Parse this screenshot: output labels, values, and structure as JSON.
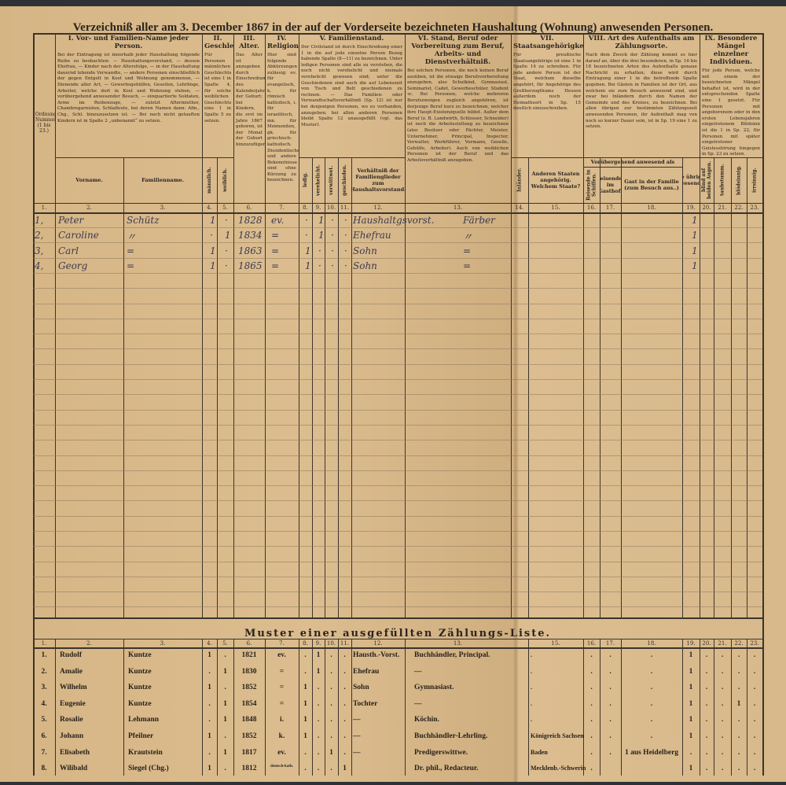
{
  "title": "Verzeichniß aller am 3. December 1867 in der auf der Vorderseite bezeichneten Haushaltung (Wohnung) anwesenden Personen.",
  "colors": {
    "paper": "#d8b98b",
    "ink": "#2c261f",
    "handwriting": "#3a3a52"
  },
  "header": {
    "ordnungsnummer": "Ordnungs-Nummer (1 bis 23.)",
    "sections": [
      {
        "id": "I",
        "title": "I. Vor- und Familien-Name jeder Person.",
        "body": "Bei der Eintragung ist innerhalb jeder Haushaltung folgende Reihe zu beobachten: — Haushaltungsvorstand, — dessen Ehefrau, — Kinder nach der Altersfolge, — in der Haushaltung dauernd lebende Verwandte, — andere Personen einschließlich der gegen Entgelt in Kost und Wohnung genommenen, — Dienende aller Art, — Gewerbsgehülfen, Gesellen, Lehrlinge, Arbeiter, welche dort in Kost und Wohnung stehen, — vorübergehend anwesender Besuch, — einquartierte Soldaten, Arme im Reihenzuge, — zuletzt Aftermiether, Chambregarnisten, Schlafleute, bei deren Namen dann: Afm., Chg., Schl. hinzuzusetzen ist. — Bei noch nicht getauften Kindern ist in Spalte 2 „unbenannt“ zu setzen."
      },
      {
        "id": "II",
        "title": "II. Geschlecht.",
        "body": "Für Personen männlichen Geschlechts ist eine 1 in Spalte 4, für solche weiblichen Geschlechts eine 1 in Spalte 5 zu setzen."
      },
      {
        "id": "III",
        "title": "III. Alter.",
        "body": "Das Alter ist anzugeben durch Einschreibung des Kalenderjahres der Geburt; bei Kindern, die erst im Jahre 1867 geboren, ist der Monat der Geburt hinzuzufügen."
      },
      {
        "id": "IV",
        "title": "IV. Religionsbekenntniß.",
        "body": "Hier sind folgende Abkürzungen zulässig: ev. für evangelisch, k. für römisch katholisch, i. für israelitisch, mn. für Mennoniten, gk. für griechisch-katholisch. Dissidentische und andere Bekenntnisse sind ohne Kürzung zu bezeichnen."
      },
      {
        "id": "V",
        "title": "V. Familienstand.",
        "body": "Der Civilstand ist durch Einschreibung einer 1 in die auf jede einzelne Person Bezug habende Spalte (8—11) zu bezeichnen. Unter ledigen Personen sind alle zu verstehen, die noch nicht verehelicht und niemals verehelicht gewesen sind; unter die Geschiedenen sind auch die auf Lebenszeit von Tisch und Bett geschiedenen zu rechnen. — Das Familien- oder Verwandtschaftsverhältniß (Sp. 12) ist nur bei denjenigen Personen, wo es vorhanden, anzugeben; bei allen anderen Personen bleibt Spalte 12 unausgefüllt (vgl. das Muster)."
      },
      {
        "id": "VI",
        "title": "VI. Stand, Beruf oder Vorbereitung zum Beruf, Arbeits- und Dienstverhältniß.",
        "body": "Bei solchen Personen, die noch keinen Beruf ausüben, ist die etwaige Berufsvorbereitung anzugeben, also Schulkind, Gymnasiast, Seminarist, Cadet, Gewerbeschüler, Student ꝛc. Bei Personen, welche mehreren Berufszweigen zugleich angehören, ist derjenige Beruf kurz zu bezeichnen, welcher ihre Haupt-Existenzquelle bildet. Außer dem Beruf (z. B. Landwirth, Schlosser, Schneider) ist noch die Arbeitsstellung zu bezeichnen (also Besitzer oder Pächter, Meister, Unternehmer, Principal, Inspector, Verwalter, Werkführer, Vormann, Geselle, Gehülfe, Arbeiter). Auch von weiblichen Personen ist der Beruf und das Arbeitsverhältniß anzugeben."
      },
      {
        "id": "VII",
        "title": "VII. Staatsangehörigkeit.",
        "body": "Für preußische Staatsangehörige ist eine 1 in Spalte 14 zu schreiben. Für jede andere Person ist der Staat, welchem dieselbe angehört, für Angehörige des Großherzogthums Hessen außerdem noch der Heimathsort in Sp. 15 deutlich einzuschreiben."
      },
      {
        "id": "VIII",
        "title": "VIII. Art des Aufenthalts am Zählungsorte.",
        "body": "Nach dem Zweck der Zählung kommt es hier darauf an, über die drei besonderen, in Sp. 16 bis 18 bezeichneten Arten des Aufenthalts genaue Nachricht zu erhalten; diese wird durch Eintragung einer 1 in die betreffende Spalte gegeben. Bei Gästen in Familien ist der Ort, aus welchem sie zum Besuch anwesend sind, und zwar bei Inländern durch den Namen der Gemeinde und des Kreises, zu bezeichnen. Bei allen übrigen zur bestimmten Zählungszeit anwesenden Personen, ihr Aufenthalt mag von noch so kurzer Dauer sein, ist in Sp. 19 eine 1 zu setzen."
      },
      {
        "id": "IX",
        "title": "IX. Besondere Mängel einzelner Individuen.",
        "body": "Für jede Person, welche mit einem der bezeichneten Mängel behaftet ist, wird in der entsprechenden Spalte eine 1 gesetzt. Für Personen mit angeborenem oder in den ersten Lebensjahren eingetretenem Blödsinn ist die 1 in Sp. 22, für Personen mit später eingetretener Geistesstörung hingegen in Sp. 23 zu setzen."
      }
    ],
    "subheaders": {
      "vorname": "Vorname.",
      "familienname": "Familienname.",
      "maennlich": "männlich.",
      "weiblich": "weiblich.",
      "ledig": "ledig.",
      "verehelicht": "verehelicht.",
      "verwittwet": "verwittwet.",
      "geschieden": "geschieden.",
      "verhaeltnis": "Verhältniß der Familienglieder zum Haushaltsvorstand.",
      "inlaender": "Inländer.",
      "andere_staaten": "Anderen Staaten angehörig. Welchem Staate?",
      "voruebergehend": "Vorübergehend anwesend als",
      "col16": "Reisende in Schiffen.",
      "reisender": "Reisender im Gasthof.",
      "gast": "Gast in der Familie (zum Besuch aus..)",
      "alle_uebrigen": "Alle übrigen Anwesenden.",
      "blind": "blind auf beiden Augen.",
      "taubstumm": "taubstumm.",
      "bloedsinnig": "blödsinnig.",
      "irrsinnig": "irrsinnig."
    },
    "column_numbers": [
      "1.",
      "2.",
      "3.",
      "4.",
      "5.",
      "6.",
      "7.",
      "8.",
      "9.",
      "10.",
      "11.",
      "12.",
      "13.",
      "14.",
      "15.",
      "16.",
      "17.",
      "18.",
      "19.",
      "20.",
      "21.",
      "22.",
      "23."
    ]
  },
  "entries": [
    {
      "nr": "1,",
      "vorname": "Peter",
      "familienname": "Schütz",
      "m": "1",
      "w": "·",
      "jahr": "1828",
      "rel": "ev.",
      "c8": "·",
      "c9": "1",
      "c10": "·",
      "c11": "·",
      "verh": "Haushaltgsvorst.",
      "beruf": "Färber",
      "c19": "1"
    },
    {
      "nr": "2,",
      "vorname": "Caroline",
      "familienname": "〃",
      "m": "·",
      "w": "1",
      "jahr": "1834",
      "rel": "=",
      "c8": "·",
      "c9": "1",
      "c10": "·",
      "c11": "·",
      "verh": "Ehefrau",
      "beruf": "〃",
      "c19": "1"
    },
    {
      "nr": "3,",
      "vorname": "Carl",
      "familienname": "=",
      "m": "1",
      "w": "·",
      "jahr": "1863",
      "rel": "=",
      "c8": "1",
      "c9": "·",
      "c10": "·",
      "c11": "·",
      "verh": "Sohn",
      "beruf": "=",
      "c19": "1"
    },
    {
      "nr": "4,",
      "vorname": "Georg",
      "familienname": "=",
      "m": "1",
      "w": "·",
      "jahr": "1865",
      "rel": "=",
      "c8": "1",
      "c9": "·",
      "c10": "·",
      "c11": "·",
      "verh": "Sohn",
      "beruf": "=",
      "c19": "1"
    }
  ],
  "sample": {
    "title": "Muster einer ausgefüllten Zählungs-Liste.",
    "rows": [
      [
        "1.",
        "Rudolf",
        "Kuntze",
        "1",
        ".",
        "1821",
        "ev.",
        ".",
        "1",
        ".",
        ".",
        "Hausth.-Vorst.",
        "Buchhändler, Principal.",
        "",
        ".",
        ".",
        ".",
        ".",
        "1",
        ".",
        ".",
        ".",
        "."
      ],
      [
        "2.",
        "Amalie",
        "Kuntze",
        ".",
        "1",
        "1830",
        "=",
        ".",
        "1",
        ".",
        ".",
        "Ehefrau",
        "—",
        "",
        ".",
        ".",
        ".",
        ".",
        "1",
        ".",
        ".",
        ".",
        "."
      ],
      [
        "3.",
        "Wilhelm",
        "Kuntze",
        "1",
        ".",
        "1852",
        "=",
        "1",
        ".",
        ".",
        ".",
        "Sohn",
        "Gymnasiast.",
        "",
        ".",
        ".",
        ".",
        ".",
        "1",
        ".",
        ".",
        ".",
        "."
      ],
      [
        "4.",
        "Eugenie",
        "Kuntze",
        ".",
        "1",
        "1854",
        "=",
        "1",
        ".",
        ".",
        ".",
        "Tochter",
        "—",
        "",
        ".",
        ".",
        ".",
        ".",
        "1",
        ".",
        ".",
        "1",
        "."
      ],
      [
        "5.",
        "Rosalie",
        "Lehmann",
        ".",
        "1",
        "1848",
        "i.",
        "1",
        ".",
        ".",
        ".",
        "—",
        "Köchin.",
        "",
        ".",
        ".",
        ".",
        ".",
        "1",
        ".",
        ".",
        ".",
        "."
      ],
      [
        "6.",
        "Johann",
        "Pfeilner",
        "1",
        ".",
        "1852",
        "k.",
        "1",
        ".",
        ".",
        ".",
        "—",
        "Buchhändler-Lehrling.",
        "",
        "Königreich Sachsen",
        ".",
        ".",
        ".",
        "1",
        ".",
        ".",
        ".",
        "."
      ],
      [
        "7.",
        "Elisabeth",
        "Krautstein",
        ".",
        "1",
        "1817",
        "ev.",
        ".",
        ".",
        "1",
        ".",
        "—",
        "Predigerswittwe.",
        "",
        "Baden",
        ".",
        ".",
        "1 aus Heidelberg",
        ".",
        ".",
        ".",
        ".",
        "."
      ],
      [
        "8.",
        "Wilibald",
        "Siegel (Chg.)",
        "1",
        ".",
        "1812",
        "deutsch-kath.",
        ".",
        ".",
        ".",
        "1",
        "",
        "Dr. phil., Redacteur.",
        "",
        "Mecklenb.-Schwerin",
        ".",
        "",
        "",
        "1",
        ".",
        ".",
        ".",
        "."
      ]
    ]
  }
}
